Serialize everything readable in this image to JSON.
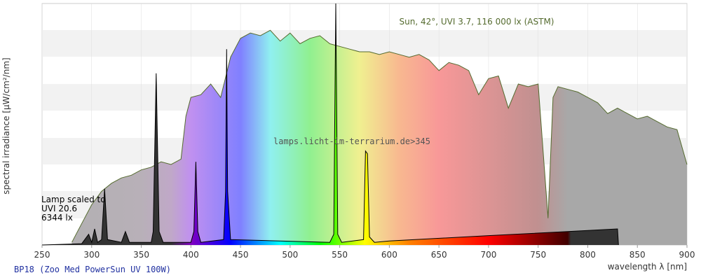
{
  "chart_data": {
    "type": "line",
    "xlabel": "wavelength λ [nm]",
    "ylabel": "spectral irradiance [µW/cm²/nm]",
    "xlim": [
      250,
      900
    ],
    "xticks": [
      250,
      300,
      350,
      400,
      450,
      500,
      550,
      600,
      650,
      700,
      750,
      800,
      850,
      900
    ],
    "ylim": [
      0,
      9
    ],
    "annotations": [
      "Lamp scaled to",
      "UVI 20.6",
      "6344 lx",
      "lamps.licht-im-terrarium.de>345"
    ],
    "series": [
      {
        "name": "Sun, 42°, UVI 3.7, 116 000 lx (ASTM)",
        "color": "#556b2f",
        "x": [
          280,
          290,
          300,
          310,
          320,
          330,
          340,
          350,
          360,
          370,
          380,
          390,
          395,
          400,
          410,
          420,
          430,
          440,
          450,
          460,
          470,
          480,
          490,
          500,
          510,
          520,
          530,
          540,
          550,
          560,
          570,
          580,
          590,
          600,
          610,
          620,
          630,
          640,
          650,
          660,
          670,
          680,
          690,
          700,
          710,
          720,
          730,
          740,
          750,
          760,
          765,
          770,
          780,
          790,
          800,
          810,
          820,
          830,
          840,
          850,
          860,
          870,
          880,
          890,
          900
        ],
        "values": [
          0.1,
          0.8,
          1.5,
          2.0,
          2.3,
          2.5,
          2.6,
          2.8,
          2.9,
          3.1,
          3.0,
          3.2,
          4.8,
          5.5,
          5.6,
          6.0,
          5.5,
          7.0,
          7.7,
          7.9,
          7.8,
          8.0,
          7.6,
          7.9,
          7.5,
          7.7,
          7.8,
          7.5,
          7.4,
          7.3,
          7.2,
          7.2,
          7.1,
          7.2,
          7.1,
          7.0,
          7.1,
          6.9,
          6.5,
          6.8,
          6.7,
          6.5,
          5.6,
          6.2,
          6.3,
          5.1,
          6.0,
          5.9,
          6.0,
          1.0,
          5.5,
          5.9,
          5.8,
          5.7,
          5.5,
          5.3,
          4.9,
          5.1,
          4.9,
          4.7,
          4.8,
          4.6,
          4.4,
          4.3,
          3.0
        ]
      },
      {
        "name": "BP18 (Zoo Med PowerSun UV 100W)",
        "color": "#000000",
        "x": [
          250,
          290,
          297,
          300,
          303,
          306,
          310,
          313,
          316,
          330,
          334,
          338,
          360,
          362,
          365,
          368,
          372,
          400,
          403,
          405,
          407,
          410,
          433,
          435,
          436,
          437,
          440,
          540,
          544,
          546,
          548,
          552,
          574,
          576,
          578,
          580,
          585,
          600,
          700,
          780,
          830,
          831
        ],
        "values": [
          0,
          0.05,
          0.4,
          0.1,
          0.6,
          0.1,
          0.2,
          2.1,
          0.2,
          0.1,
          0.5,
          0.1,
          0.1,
          0.5,
          6.4,
          0.5,
          0.1,
          0.1,
          0.5,
          3.1,
          0.5,
          0.1,
          0.2,
          2.0,
          7.3,
          2.0,
          0.2,
          0.1,
          0.4,
          9.0,
          0.4,
          0.1,
          0.2,
          3.5,
          3.4,
          0.3,
          0.1,
          0.15,
          0.35,
          0.5,
          0.6,
          0
        ]
      }
    ]
  }
}
